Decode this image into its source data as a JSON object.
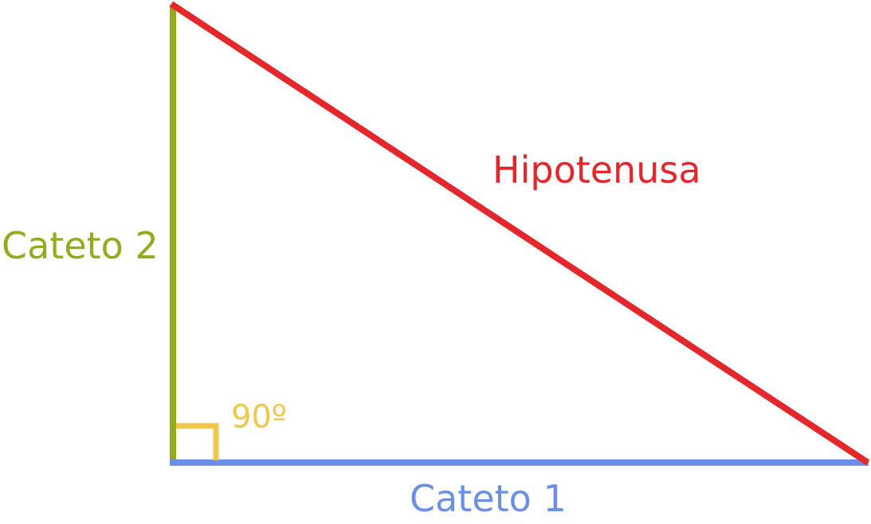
{
  "labels": {
    "hypotenuse": "Hipotenusa",
    "leg_vertical": "Cateto 2",
    "leg_horizontal": "Cateto 1",
    "angle": "90º"
  },
  "colors": {
    "hypotenuse": "#e3272a",
    "leg_vertical": "#93ab1c",
    "leg_horizontal": "#6b8fe6",
    "angle": "#f1c64c",
    "background": "#ffffff"
  }
}
